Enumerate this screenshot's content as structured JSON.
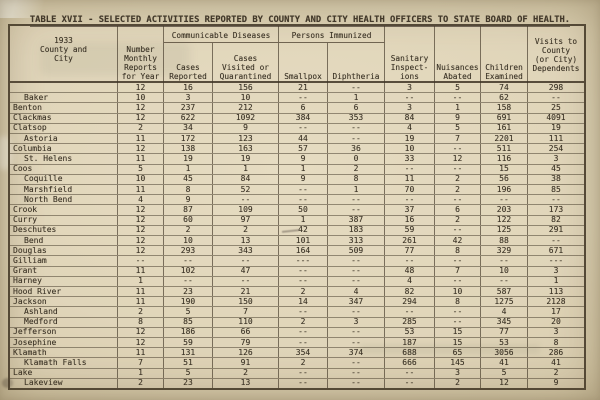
{
  "title": "TABLE XVII - SELECTED ACTIVITIES REPORTED BY COUNTY AND CITY HEALTH OFFICERS TO STATE BOARD OF HEALTH.",
  "palette": {
    "paper": "#d9cdae",
    "ink": "#3b3326",
    "border": "#403526"
  },
  "table": {
    "headers": {
      "county": "1933\nCounty and\nCity",
      "monthly_reports": "Number\nMonthly\nReports\nfor Year",
      "communicable_diseases": "Communicable Diseases",
      "cases_reported": "Cases\nReported",
      "cases_visited": "Cases\nVisited or\nQuarantined",
      "persons_immunized": "Persons Immunized",
      "smallpox": "Smallpox",
      "diphtheria": "Diphtheria",
      "sanitary_inspections": "Sanitary\nInspect-\nions",
      "nuisances_abated": "Nuisances\nAbated",
      "children_examined": "Children\nExamined",
      "visits_dependents": "Visits to\nCounty\n(or City)\nDependents"
    },
    "rows": [
      {
        "label": "",
        "indent": false,
        "values": [
          "12",
          "16",
          "156",
          "21",
          "--",
          "3",
          "5",
          "74",
          "298"
        ]
      },
      {
        "label": "Baker",
        "indent": true,
        "values": [
          "10",
          "3",
          "10",
          "--",
          "1",
          "--",
          "--",
          "62",
          "--"
        ]
      },
      {
        "label": "Benton",
        "indent": false,
        "values": [
          "12",
          "237",
          "212",
          "6",
          "6",
          "3",
          "1",
          "158",
          "25"
        ]
      },
      {
        "label": "Clackmas",
        "indent": false,
        "values": [
          "12",
          "622",
          "1092",
          "384",
          "353",
          "84",
          "9",
          "691",
          "4091"
        ]
      },
      {
        "label": "Clatsop",
        "indent": false,
        "values": [
          "2",
          "34",
          "9",
          "--",
          "--",
          "4",
          "5",
          "161",
          "19"
        ]
      },
      {
        "label": "Astoria",
        "indent": true,
        "values": [
          "11",
          "172",
          "123",
          "44",
          "--",
          "19",
          "7",
          "2201",
          "111"
        ]
      },
      {
        "label": "Columbia",
        "indent": false,
        "values": [
          "12",
          "138",
          "163",
          "57",
          "36",
          "10",
          "--",
          "511",
          "254"
        ]
      },
      {
        "label": "St. Helens",
        "indent": true,
        "values": [
          "11",
          "19",
          "19",
          "9",
          "0",
          "33",
          "12",
          "116",
          "3"
        ]
      },
      {
        "label": "Coos",
        "indent": false,
        "values": [
          "5",
          "1",
          "1",
          "1",
          "2",
          "--",
          "--",
          "15",
          "45"
        ]
      },
      {
        "label": "Coquille",
        "indent": true,
        "values": [
          "10",
          "45",
          "84",
          "9",
          "8",
          "11",
          "2",
          "56",
          "38"
        ]
      },
      {
        "label": "Marshfield",
        "indent": true,
        "values": [
          "11",
          "8",
          "52",
          "--",
          "1",
          "70",
          "2",
          "196",
          "85"
        ]
      },
      {
        "label": "North Bend",
        "indent": true,
        "values": [
          "4",
          "9",
          "--",
          "--",
          "--",
          "--",
          "--",
          "--",
          "--"
        ]
      },
      {
        "label": "Crook",
        "indent": false,
        "values": [
          "12",
          "87",
          "109",
          "50",
          "--",
          "37",
          "6",
          "203",
          "173"
        ]
      },
      {
        "label": "Curry",
        "indent": false,
        "values": [
          "12",
          "60",
          "97",
          "1",
          "387",
          "16",
          "2",
          "122",
          "82"
        ]
      },
      {
        "label": "Deschutes",
        "indent": false,
        "values": [
          "12",
          "2",
          "2",
          "42",
          "183",
          "59",
          "--",
          "125",
          "291"
        ]
      },
      {
        "label": "Bend",
        "indent": true,
        "values": [
          "12",
          "10",
          "13",
          "101",
          "313",
          "261",
          "42",
          "88",
          "--"
        ]
      },
      {
        "label": "Douglas",
        "indent": false,
        "values": [
          "12",
          "293",
          "343",
          "164",
          "509",
          "77",
          "8",
          "329",
          "671"
        ]
      },
      {
        "label": "Gilliam",
        "indent": false,
        "values": [
          "--",
          "--",
          "--",
          "---",
          "--",
          "--",
          "--",
          "--",
          "---"
        ]
      },
      {
        "label": "Grant",
        "indent": false,
        "values": [
          "11",
          "102",
          "47",
          "--",
          "--",
          "48",
          "7",
          "10",
          "3"
        ]
      },
      {
        "label": "Harney",
        "indent": false,
        "values": [
          "1",
          "--",
          "--",
          "--",
          "--",
          "4",
          "--",
          "--",
          "1"
        ]
      },
      {
        "label": "Hood River",
        "indent": false,
        "values": [
          "11",
          "23",
          "21",
          "2",
          "4",
          "82",
          "10",
          "587",
          "113"
        ]
      },
      {
        "label": "Jackson",
        "indent": false,
        "values": [
          "11",
          "190",
          "150",
          "14",
          "347",
          "294",
          "8",
          "1275",
          "2128"
        ]
      },
      {
        "label": "Ashland",
        "indent": true,
        "values": [
          "2",
          "5",
          "7",
          "--",
          "--",
          "--",
          "--",
          "4",
          "17"
        ]
      },
      {
        "label": "Medford",
        "indent": true,
        "values": [
          "8",
          "85",
          "110",
          "2",
          "3",
          "285",
          "--",
          "345",
          "20"
        ]
      },
      {
        "label": "Jefferson",
        "indent": false,
        "values": [
          "12",
          "186",
          "66",
          "--",
          "--",
          "53",
          "15",
          "77",
          "3"
        ]
      },
      {
        "label": "Josephine",
        "indent": false,
        "values": [
          "12",
          "59",
          "79",
          "--",
          "--",
          "187",
          "15",
          "53",
          "8"
        ]
      },
      {
        "label": "Klamath",
        "indent": false,
        "values": [
          "11",
          "131",
          "126",
          "354",
          "374",
          "688",
          "65",
          "3056",
          "286"
        ]
      },
      {
        "label": "Klamath Falls",
        "indent": true,
        "values": [
          "7",
          "51",
          "91",
          "2",
          "--",
          "666",
          "145",
          "41",
          "41"
        ]
      },
      {
        "label": "Lake",
        "indent": false,
        "values": [
          "1",
          "5",
          "2",
          "--",
          "--",
          "--",
          "3",
          "5",
          "2"
        ]
      },
      {
        "label": "Lakeview",
        "indent": true,
        "values": [
          "2",
          "23",
          "13",
          "--",
          "--",
          "--",
          "2",
          "12",
          "9"
        ]
      }
    ]
  }
}
